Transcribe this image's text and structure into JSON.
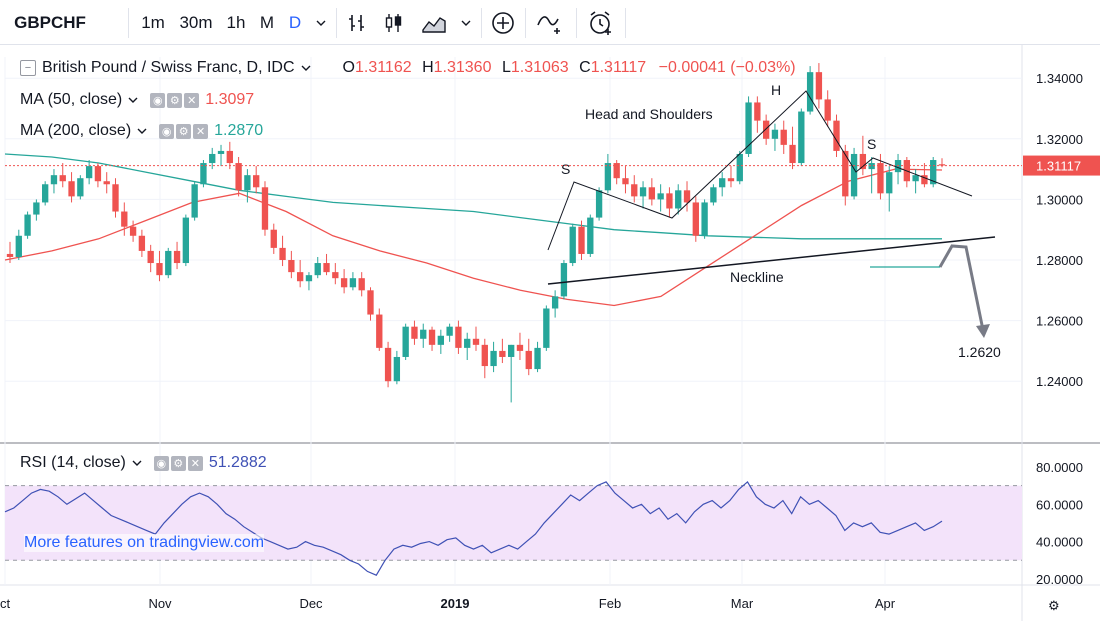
{
  "toolbar": {
    "symbol": "GBPCHF",
    "intervals": [
      "1m",
      "30m",
      "1h",
      "M",
      "D"
    ],
    "active_interval": "D",
    "icons": [
      "chevron-down-icon",
      "bar-chart-icon",
      "candles-icon",
      "area-chart-icon",
      "chevron-down-icon",
      "add-indicator-icon",
      "compare-icon",
      "alert-clock-icon"
    ]
  },
  "legend": {
    "title": "British Pound / Swiss Franc, D, IDC",
    "open_label": "O",
    "open": "1.31162",
    "high_label": "H",
    "high": "1.31360",
    "low_label": "L",
    "low": "1.31063",
    "close_label": "C",
    "close": "1.31117",
    "change": "−0.00041 (−0.03%)"
  },
  "indicators": [
    {
      "label": "MA (50, close)",
      "value": "1.3097",
      "color": "#ef5350"
    },
    {
      "label": "MA (200, close)",
      "value": "1.2870",
      "color": "#26a69a"
    },
    {
      "label": "RSI (14, close)",
      "value": "51.2882",
      "color": "#3f51b5"
    }
  ],
  "watermark": "More features on tradingview.com",
  "colors": {
    "up": "#26a69a",
    "down": "#ef5350",
    "ma50": "#ef5350",
    "ma200": "#26a69a",
    "rsi": "#3f51b5",
    "rsi_band": "#f3e3fa"
  },
  "chart_data": [
    {
      "type": "candlestick",
      "symbol": "GBPCHF",
      "y_ticks": [
        "1.34000",
        "1.32000",
        "1.30000",
        "1.28000",
        "1.26000",
        "1.24000"
      ],
      "ylim": [
        1.23,
        1.35
      ],
      "x_ticks": [
        "Oct",
        "Nov",
        "Dec",
        "2019",
        "Feb",
        "Mar",
        "Apr"
      ],
      "last_price": "1.31117",
      "ohlc": [
        [
          1.282,
          1.286,
          1.279,
          1.281
        ],
        [
          1.281,
          1.29,
          1.28,
          1.288
        ],
        [
          1.288,
          1.296,
          1.287,
          1.295
        ],
        [
          1.295,
          1.3,
          1.293,
          1.299
        ],
        [
          1.299,
          1.306,
          1.298,
          1.305
        ],
        [
          1.305,
          1.31,
          1.302,
          1.308
        ],
        [
          1.308,
          1.312,
          1.304,
          1.306
        ],
        [
          1.306,
          1.309,
          1.299,
          1.301
        ],
        [
          1.301,
          1.308,
          1.3,
          1.307
        ],
        [
          1.307,
          1.313,
          1.305,
          1.311
        ],
        [
          1.311,
          1.312,
          1.304,
          1.306
        ],
        [
          1.306,
          1.309,
          1.302,
          1.305
        ],
        [
          1.305,
          1.307,
          1.294,
          1.296
        ],
        [
          1.296,
          1.299,
          1.288,
          1.291
        ],
        [
          1.291,
          1.293,
          1.286,
          1.288
        ],
        [
          1.288,
          1.29,
          1.281,
          1.283
        ],
        [
          1.283,
          1.285,
          1.276,
          1.279
        ],
        [
          1.279,
          1.283,
          1.273,
          1.275
        ],
        [
          1.275,
          1.284,
          1.274,
          1.283
        ],
        [
          1.283,
          1.286,
          1.277,
          1.279
        ],
        [
          1.279,
          1.295,
          1.278,
          1.294
        ],
        [
          1.294,
          1.306,
          1.293,
          1.305
        ],
        [
          1.305,
          1.313,
          1.304,
          1.312
        ],
        [
          1.312,
          1.317,
          1.31,
          1.315
        ],
        [
          1.315,
          1.318,
          1.311,
          1.316
        ],
        [
          1.316,
          1.319,
          1.31,
          1.312
        ],
        [
          1.312,
          1.314,
          1.301,
          1.303
        ],
        [
          1.303,
          1.31,
          1.299,
          1.308
        ],
        [
          1.308,
          1.311,
          1.302,
          1.304
        ],
        [
          1.304,
          1.306,
          1.288,
          1.29
        ],
        [
          1.29,
          1.292,
          1.282,
          1.284
        ],
        [
          1.284,
          1.288,
          1.278,
          1.28
        ],
        [
          1.28,
          1.283,
          1.274,
          1.276
        ],
        [
          1.276,
          1.28,
          1.271,
          1.273
        ],
        [
          1.273,
          1.276,
          1.27,
          1.275
        ],
        [
          1.275,
          1.281,
          1.274,
          1.279
        ],
        [
          1.279,
          1.282,
          1.275,
          1.276
        ],
        [
          1.276,
          1.279,
          1.272,
          1.274
        ],
        [
          1.274,
          1.277,
          1.269,
          1.271
        ],
        [
          1.271,
          1.276,
          1.27,
          1.274
        ],
        [
          1.274,
          1.276,
          1.268,
          1.27
        ],
        [
          1.27,
          1.271,
          1.26,
          1.262
        ],
        [
          1.262,
          1.264,
          1.25,
          1.251
        ],
        [
          1.251,
          1.253,
          1.238,
          1.24
        ],
        [
          1.24,
          1.25,
          1.239,
          1.248
        ],
        [
          1.248,
          1.259,
          1.247,
          1.258
        ],
        [
          1.258,
          1.26,
          1.252,
          1.254
        ],
        [
          1.254,
          1.259,
          1.251,
          1.257
        ],
        [
          1.257,
          1.258,
          1.25,
          1.252
        ],
        [
          1.252,
          1.257,
          1.249,
          1.255
        ],
        [
          1.255,
          1.259,
          1.253,
          1.258
        ],
        [
          1.258,
          1.26,
          1.249,
          1.251
        ],
        [
          1.251,
          1.256,
          1.247,
          1.254
        ],
        [
          1.254,
          1.258,
          1.25,
          1.252
        ],
        [
          1.252,
          1.254,
          1.241,
          1.245
        ],
        [
          1.245,
          1.253,
          1.243,
          1.25
        ],
        [
          1.25,
          1.254,
          1.246,
          1.248
        ],
        [
          1.248,
          1.252,
          1.233,
          1.252
        ],
        [
          1.252,
          1.256,
          1.247,
          1.25
        ],
        [
          1.25,
          1.254,
          1.242,
          1.244
        ],
        [
          1.244,
          1.253,
          1.243,
          1.251
        ],
        [
          1.251,
          1.265,
          1.25,
          1.264
        ],
        [
          1.264,
          1.27,
          1.261,
          1.268
        ],
        [
          1.268,
          1.28,
          1.267,
          1.279
        ],
        [
          1.279,
          1.292,
          1.278,
          1.291
        ],
        [
          1.291,
          1.293,
          1.28,
          1.282
        ],
        [
          1.282,
          1.295,
          1.281,
          1.294
        ],
        [
          1.294,
          1.304,
          1.293,
          1.303
        ],
        [
          1.303,
          1.315,
          1.302,
          1.312
        ],
        [
          1.312,
          1.313,
          1.305,
          1.307
        ],
        [
          1.307,
          1.311,
          1.302,
          1.305
        ],
        [
          1.305,
          1.308,
          1.299,
          1.301
        ],
        [
          1.301,
          1.306,
          1.297,
          1.304
        ],
        [
          1.304,
          1.307,
          1.298,
          1.3
        ],
        [
          1.3,
          1.305,
          1.296,
          1.302
        ],
        [
          1.302,
          1.304,
          1.294,
          1.297
        ],
        [
          1.297,
          1.305,
          1.295,
          1.303
        ],
        [
          1.303,
          1.306,
          1.296,
          1.299
        ],
        [
          1.299,
          1.301,
          1.286,
          1.288
        ],
        [
          1.288,
          1.3,
          1.287,
          1.299
        ],
        [
          1.299,
          1.305,
          1.298,
          1.304
        ],
        [
          1.304,
          1.309,
          1.301,
          1.307
        ],
        [
          1.307,
          1.311,
          1.304,
          1.306
        ],
        [
          1.306,
          1.316,
          1.305,
          1.315
        ],
        [
          1.315,
          1.334,
          1.314,
          1.332
        ],
        [
          1.332,
          1.334,
          1.322,
          1.326
        ],
        [
          1.326,
          1.328,
          1.318,
          1.32
        ],
        [
          1.32,
          1.325,
          1.316,
          1.323
        ],
        [
          1.323,
          1.326,
          1.315,
          1.318
        ],
        [
          1.318,
          1.324,
          1.31,
          1.312
        ],
        [
          1.312,
          1.33,
          1.311,
          1.329
        ],
        [
          1.329,
          1.344,
          1.328,
          1.342
        ],
        [
          1.342,
          1.345,
          1.33,
          1.333
        ],
        [
          1.333,
          1.336,
          1.324,
          1.326
        ],
        [
          1.326,
          1.328,
          1.314,
          1.316
        ],
        [
          1.316,
          1.318,
          1.298,
          1.301
        ],
        [
          1.301,
          1.317,
          1.3,
          1.315
        ],
        [
          1.315,
          1.321,
          1.308,
          1.31
        ],
        [
          1.31,
          1.314,
          1.302,
          1.312
        ],
        [
          1.312,
          1.315,
          1.3,
          1.302
        ],
        [
          1.302,
          1.311,
          1.296,
          1.309
        ],
        [
          1.309,
          1.315,
          1.305,
          1.313
        ],
        [
          1.313,
          1.314,
          1.304,
          1.306
        ],
        [
          1.306,
          1.31,
          1.302,
          1.308
        ],
        [
          1.308,
          1.312,
          1.304,
          1.305
        ],
        [
          1.305,
          1.314,
          1.304,
          1.313
        ],
        [
          1.3116,
          1.3136,
          1.3106,
          1.3112
        ]
      ],
      "ma50": [
        1.28,
        1.283,
        1.287,
        1.293,
        1.299,
        1.302,
        1.296,
        1.288,
        1.283,
        1.279,
        1.274,
        1.27,
        1.267,
        1.265,
        1.268,
        1.278,
        1.288,
        1.298,
        1.306,
        1.31,
        1.3097
      ],
      "ma200": [
        1.315,
        1.314,
        1.312,
        1.309,
        1.306,
        1.303,
        1.301,
        1.299,
        1.298,
        1.297,
        1.296,
        1.294,
        1.292,
        1.29,
        1.289,
        1.288,
        1.2875,
        1.287,
        1.287,
        1.287,
        1.287
      ],
      "annotations": [
        {
          "text": "Head and Shoulders"
        },
        {
          "text": "S"
        },
        {
          "text": "H"
        },
        {
          "text": "S"
        },
        {
          "text": "Neckline"
        },
        {
          "text": "1.2620"
        }
      ]
    },
    {
      "type": "line",
      "name": "RSI (14, close)",
      "y_ticks": [
        "80.0000",
        "60.0000",
        "40.0000",
        "20.0000"
      ],
      "ylim": [
        20,
        80
      ],
      "band": [
        30,
        70
      ],
      "values": [
        56,
        58,
        62,
        66,
        68,
        67,
        64,
        60,
        63,
        66,
        62,
        58,
        54,
        52,
        50,
        48,
        46,
        44,
        50,
        55,
        60,
        64,
        66,
        64,
        60,
        55,
        52,
        48,
        45,
        42,
        40,
        38,
        36,
        37,
        40,
        38,
        37,
        35,
        33,
        30,
        28,
        24,
        22,
        30,
        36,
        38,
        37,
        39,
        40,
        38,
        41,
        42,
        38,
        36,
        38,
        34,
        36,
        38,
        36,
        40,
        44,
        50,
        55,
        60,
        65,
        62,
        66,
        70,
        72,
        66,
        62,
        58,
        60,
        55,
        58,
        52,
        55,
        50,
        56,
        60,
        62,
        58,
        62,
        68,
        72,
        64,
        60,
        58,
        62,
        55,
        64,
        60,
        62,
        58,
        54,
        46,
        50,
        48,
        50,
        45,
        44,
        46,
        48,
        50,
        46,
        48,
        51
      ]
    }
  ]
}
